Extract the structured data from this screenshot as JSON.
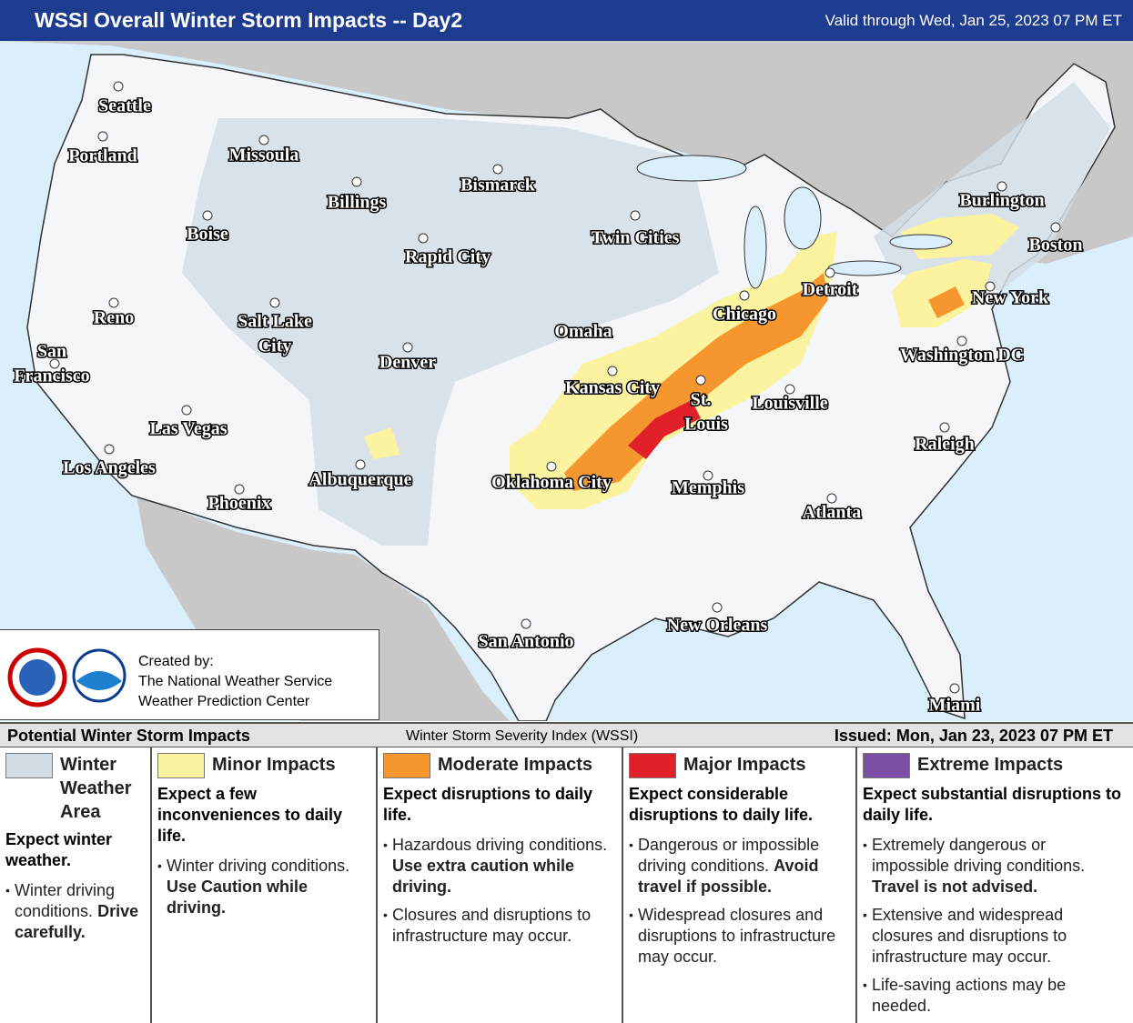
{
  "header": {
    "title": "WSSI Overall Winter Storm Impacts -- Day2",
    "valid": "Valid through Wed, Jan 25, 2023 07 PM ET"
  },
  "map": {
    "cities": [
      [
        "Seattle"
      ],
      [
        "Portland"
      ],
      [
        "Missoula"
      ],
      [
        "Boise"
      ],
      [
        "Billings"
      ],
      [
        "Bismarck"
      ],
      [
        "Rapid City"
      ],
      [
        "Twin Cities"
      ],
      [
        "Reno"
      ],
      [
        "San",
        "Francisco"
      ],
      [
        "Salt Lake",
        "City"
      ],
      [
        "Denver"
      ],
      [
        "Omaha"
      ],
      [
        "Chicago"
      ],
      [
        "Detroit"
      ],
      [
        "Burlington"
      ],
      [
        "Boston"
      ],
      [
        "New York"
      ],
      [
        "Kansas City"
      ],
      [
        "St.",
        "Louis"
      ],
      [
        "Louisville"
      ],
      [
        "Washington DC"
      ],
      [
        "Las Vegas"
      ],
      [
        "Los Angeles"
      ],
      [
        "Albuquerque"
      ],
      [
        "Oklahoma City"
      ],
      [
        "Memphis"
      ],
      [
        "Raleigh"
      ],
      [
        "Phoenix"
      ],
      [
        "Atlanta"
      ],
      [
        "San Antonio"
      ],
      [
        "New Orleans"
      ],
      [
        "Miami"
      ]
    ]
  },
  "credit": {
    "created_by": "Created by:",
    "lines": [
      "The National Weather Service",
      "Weather Prediction Center"
    ]
  },
  "legend": {
    "title": "Potential Winter Storm Impacts",
    "subtitle": "Winter Storm Severity Index (WSSI)",
    "issued": "Issued: Mon, Jan 23, 2023 07 PM ET",
    "columns": [
      {
        "label": "Winter Weather Area",
        "color": "#d3dde6",
        "summary": "Expect winter weather.",
        "bullets": [
          {
            "text": "Winter driving conditions.",
            "strong": "Drive carefully."
          }
        ]
      },
      {
        "label": "Minor Impacts",
        "color": "#fbf3a0",
        "summary": "Expect a few inconveniences to daily life.",
        "bullets": [
          {
            "text": "Winter driving conditions.",
            "strong": "Use Caution while driving."
          }
        ]
      },
      {
        "label": "Moderate Impacts",
        "color": "#f5962f",
        "summary": "Expect disruptions to daily life.",
        "bullets": [
          {
            "text": "Hazardous driving conditions.",
            "strong": "Use extra caution while driving."
          },
          {
            "text": "Closures and disruptions to infrastructure may occur."
          }
        ]
      },
      {
        "label": "Major Impacts",
        "color": "#e1202a",
        "summary": "Expect considerable disruptions to daily life.",
        "bullets": [
          {
            "text": "Dangerous or impossible driving conditions.",
            "strong": "Avoid travel if possible."
          },
          {
            "text": "Widespread closures and disruptions to infrastructure may occur."
          }
        ]
      },
      {
        "label": "Extreme Impacts",
        "color": "#7b4fa6",
        "summary": "Expect substantial disruptions to daily life.",
        "bullets": [
          {
            "text": "Extremely dangerous or impossible driving conditions.",
            "strong": "Travel is not advised."
          },
          {
            "text": "Extensive and widespread closures and disruptions to infrastructure may occur."
          },
          {
            "text": "Life-saving actions may be needed."
          }
        ]
      }
    ]
  }
}
